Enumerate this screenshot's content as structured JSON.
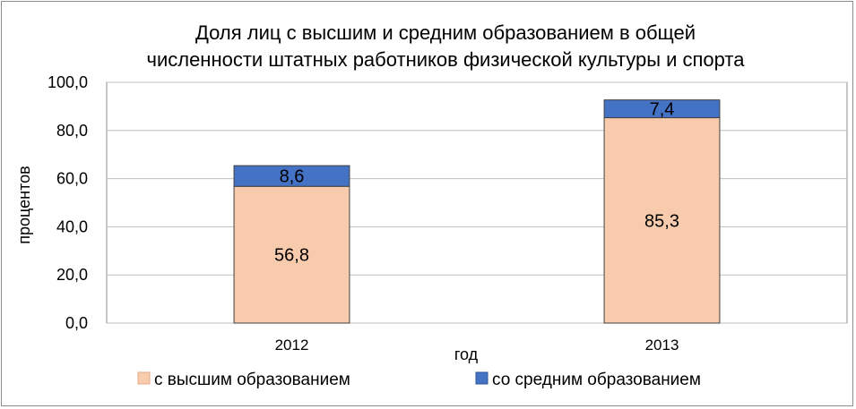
{
  "chart_data": {
    "type": "bar",
    "stacked": true,
    "title_lines": [
      "Доля лиц с высшим и средним образованием  в общей",
      "численности штатных работников физической культуры и спорта"
    ],
    "xlabel": "год",
    "ylabel": "процентов",
    "ylim": [
      0,
      100
    ],
    "y_ticks": [
      0,
      20,
      40,
      60,
      80,
      100
    ],
    "y_tick_labels": [
      "0,0",
      "20,0",
      "40,0",
      "60,0",
      "80,0",
      "100,0"
    ],
    "categories": [
      "2012",
      "2013"
    ],
    "series": [
      {
        "name": "с высшим образованием",
        "values": [
          56.8,
          85.3
        ],
        "labels": [
          "56,8",
          "85,3"
        ],
        "color": "#f8cbad"
      },
      {
        "name": "со средним образованием",
        "values": [
          8.6,
          7.4
        ],
        "labels": [
          "8,6",
          "7,4"
        ],
        "color": "#4472c4"
      }
    ],
    "grid": true,
    "legend_position": "bottom"
  }
}
